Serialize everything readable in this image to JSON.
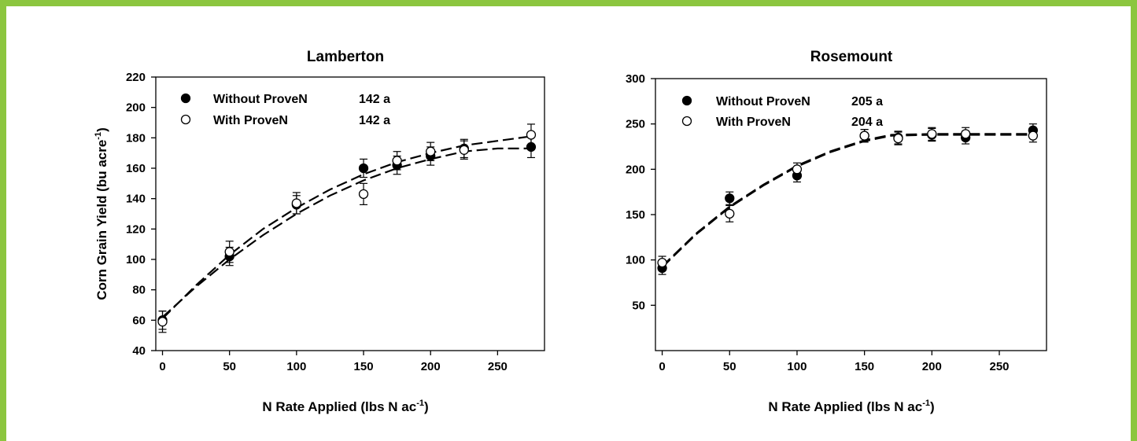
{
  "frame_color": "#8cc63f",
  "chart_data": [
    {
      "type": "scatter",
      "title": "Lamberton",
      "xlabel": "N Rate Applied (lbs N ac",
      "xlabel_sup": "-1",
      "xlabel_end": ")",
      "ylabel": "Corn Grain Yield (bu acre",
      "ylabel_sup": "-1",
      "ylabel_end": ")",
      "xlim": [
        -5,
        285
      ],
      "ylim": [
        40,
        220
      ],
      "xticks": [
        0,
        50,
        100,
        150,
        200,
        250
      ],
      "yticks": [
        40,
        60,
        80,
        100,
        120,
        140,
        160,
        180,
        200,
        220
      ],
      "legend_position": "top-left",
      "series": [
        {
          "name": "Without ProveN",
          "stat": "142 a",
          "marker": "filled-circle",
          "x": [
            0,
            50,
            100,
            150,
            175,
            200,
            225,
            275
          ],
          "y": [
            60,
            102,
            136,
            160,
            162,
            168,
            173,
            174
          ],
          "err": [
            6,
            6,
            6,
            6,
            6,
            6,
            6,
            7
          ],
          "fit": [
            [
              0,
              62
            ],
            [
              25,
              82
            ],
            [
              50,
              100
            ],
            [
              75,
              116
            ],
            [
              100,
              130
            ],
            [
              125,
              142
            ],
            [
              150,
              152
            ],
            [
              175,
              160
            ],
            [
              200,
              166
            ],
            [
              225,
              171
            ],
            [
              250,
              173
            ],
            [
              275,
              173
            ]
          ]
        },
        {
          "name": "With ProveN",
          "stat": "142 a",
          "marker": "open-circle",
          "x": [
            0,
            50,
            100,
            150,
            175,
            200,
            225,
            275
          ],
          "y": [
            59,
            105,
            137,
            143,
            165,
            171,
            172,
            182
          ],
          "err": [
            7,
            7,
            7,
            7,
            6,
            6,
            6,
            7
          ],
          "fit": [
            [
              0,
              61
            ],
            [
              25,
              83
            ],
            [
              50,
              103
            ],
            [
              75,
              120
            ],
            [
              100,
              134
            ],
            [
              125,
              146
            ],
            [
              150,
              156
            ],
            [
              175,
              164
            ],
            [
              200,
              170
            ],
            [
              225,
              175
            ],
            [
              250,
              178
            ],
            [
              275,
              181
            ]
          ]
        }
      ]
    },
    {
      "type": "scatter",
      "title": "Rosemount",
      "xlabel": "N Rate Applied (lbs N ac",
      "xlabel_sup": "-1",
      "xlabel_end": ")",
      "ylabel": "",
      "xlim": [
        -5,
        285
      ],
      "ylim": [
        0,
        300
      ],
      "yaxis_min_shown": 50,
      "xticks": [
        0,
        50,
        100,
        150,
        200,
        250
      ],
      "yticks": [
        50,
        100,
        150,
        200,
        250,
        300
      ],
      "legend_position": "top-left",
      "series": [
        {
          "name": "Without ProveN",
          "stat": "205 a",
          "marker": "filled-circle",
          "x": [
            0,
            50,
            100,
            150,
            175,
            200,
            225,
            275
          ],
          "y": [
            91,
            168,
            193,
            237,
            235,
            238,
            235,
            243
          ],
          "err": [
            7,
            7,
            7,
            7,
            7,
            7,
            7,
            7
          ],
          "fit": [
            [
              0,
              92
            ],
            [
              25,
              128
            ],
            [
              50,
              158
            ],
            [
              75,
              182
            ],
            [
              100,
              203
            ],
            [
              125,
              219
            ],
            [
              150,
              231
            ],
            [
              170,
              237
            ],
            [
              200,
              238
            ],
            [
              225,
              238
            ],
            [
              250,
              238
            ],
            [
              275,
              238
            ]
          ]
        },
        {
          "name": "With ProveN",
          "stat": "204 a",
          "marker": "open-circle",
          "x": [
            0,
            50,
            100,
            150,
            175,
            200,
            225,
            275
          ],
          "y": [
            97,
            151,
            200,
            237,
            234,
            239,
            239,
            237
          ],
          "err": [
            7,
            9,
            7,
            7,
            7,
            7,
            7,
            7
          ],
          "fit": [
            [
              0,
              93
            ],
            [
              25,
              129
            ],
            [
              50,
              159
            ],
            [
              75,
              183
            ],
            [
              100,
              204
            ],
            [
              125,
              220
            ],
            [
              150,
              232
            ],
            [
              170,
              238
            ],
            [
              200,
              239
            ],
            [
              225,
              239
            ],
            [
              250,
              239
            ],
            [
              275,
              239
            ]
          ]
        }
      ]
    }
  ]
}
